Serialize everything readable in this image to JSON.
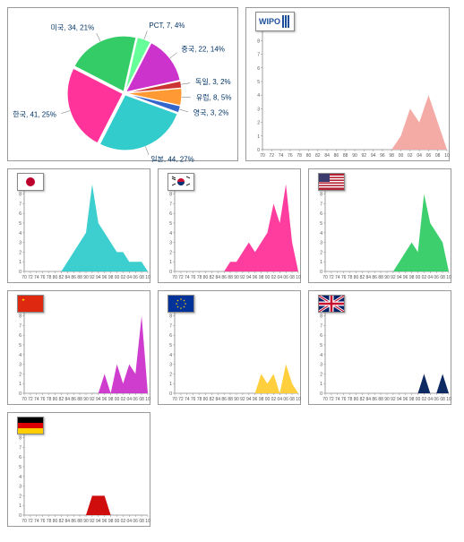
{
  "pie": {
    "slices": [
      {
        "label": "일본, 44, 27%",
        "value": 27,
        "color": "#33cccc"
      },
      {
        "label": "한국, 41, 25%",
        "value": 25,
        "color": "#ff3399"
      },
      {
        "label": "미국, 34, 21%",
        "value": 21,
        "color": "#33cc66"
      },
      {
        "label": "PCT, 7, 4%",
        "value": 4,
        "color": "#66ff99"
      },
      {
        "label": "중국, 22, 14%",
        "value": 14,
        "color": "#cc33cc"
      },
      {
        "label": "독일, 3, 2%",
        "value": 2,
        "color": "#cc3333"
      },
      {
        "label": "유럽, 8, 5%",
        "value": 5,
        "color": "#ff9933"
      },
      {
        "label": "영국, 3, 2%",
        "value": 2,
        "color": "#3366cc"
      }
    ],
    "label_color": "#003366",
    "label_fontsize": 8
  },
  "x_ticks": [
    "70",
    "72",
    "74",
    "76",
    "78",
    "80",
    "82",
    "84",
    "86",
    "88",
    "90",
    "92",
    "94",
    "96",
    "98",
    "00",
    "02",
    "04",
    "06",
    "08",
    "10"
  ],
  "ylim": [
    0,
    10
  ],
  "ytick_step": 1,
  "tick_fontsize": 5,
  "axis_color": "#888888",
  "grid_color": "#dddddd",
  "panels": [
    {
      "name": "wipo",
      "flag_label": "WIPO",
      "color": "#f4a6a0",
      "values": [
        0,
        0,
        0,
        0,
        0,
        0,
        0,
        0,
        0,
        0,
        0,
        0,
        0,
        0,
        0,
        1,
        3,
        2,
        4,
        2,
        0
      ]
    },
    {
      "name": "japan",
      "flag_svg": "jp",
      "color": "#33cccc",
      "values": [
        0,
        0,
        0,
        0,
        0,
        0,
        0,
        1,
        2,
        3,
        4,
        9,
        5,
        4,
        3,
        2,
        2,
        1,
        1,
        1,
        0
      ]
    },
    {
      "name": "korea",
      "flag_svg": "kr",
      "color": "#ff3399",
      "values": [
        0,
        0,
        0,
        0,
        0,
        0,
        0,
        0,
        0,
        1,
        1,
        2,
        3,
        2,
        3,
        4,
        7,
        5,
        9,
        3,
        0
      ]
    },
    {
      "name": "usa",
      "flag_svg": "us",
      "color": "#33cc66",
      "values": [
        0,
        0,
        0,
        0,
        0,
        0,
        0,
        0,
        0,
        0,
        0,
        0,
        1,
        2,
        3,
        2,
        8,
        5,
        4,
        3,
        0
      ]
    },
    {
      "name": "china",
      "flag_svg": "cn",
      "color": "#cc33cc",
      "values": [
        0,
        0,
        0,
        0,
        0,
        0,
        0,
        0,
        0,
        0,
        0,
        0,
        0,
        2,
        0,
        3,
        1,
        3,
        2,
        8,
        0
      ]
    },
    {
      "name": "eu",
      "flag_svg": "eu",
      "color": "#ffcc33",
      "values": [
        0,
        0,
        0,
        0,
        0,
        0,
        0,
        0,
        0,
        0,
        0,
        0,
        0,
        0,
        2,
        1,
        2,
        0,
        3,
        1,
        0
      ]
    },
    {
      "name": "uk",
      "flag_svg": "uk",
      "color": "#001f5b",
      "values": [
        0,
        0,
        0,
        0,
        0,
        0,
        0,
        0,
        0,
        0,
        0,
        0,
        0,
        0,
        0,
        0,
        2,
        0,
        0,
        2,
        0
      ]
    },
    {
      "name": "germany",
      "flag_svg": "de",
      "color": "#cc0000",
      "values": [
        0,
        0,
        0,
        0,
        0,
        0,
        0,
        0,
        0,
        0,
        0,
        2,
        2,
        2,
        0,
        0,
        0,
        0,
        0,
        0,
        0
      ]
    }
  ]
}
